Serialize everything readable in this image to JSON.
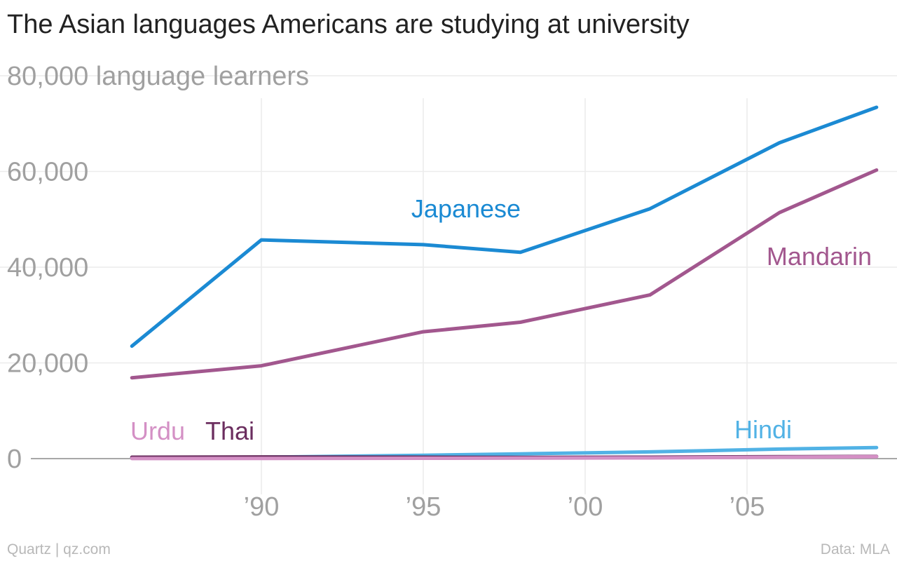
{
  "chart_data": {
    "type": "line",
    "title": "The Asian languages Americans are studying at university",
    "ylabel": "language learners",
    "ylim": [
      0,
      80000
    ],
    "xlim": [
      1983.3,
      2009.3
    ],
    "y_ticks": [
      0,
      20000,
      40000,
      60000,
      80000
    ],
    "y_tick_labels": [
      "0",
      "20,000",
      "40,000",
      "60,000",
      "80,000 language learners"
    ],
    "x_ticks": [
      1990,
      1995,
      2000,
      2005
    ],
    "x_tick_labels": [
      "’90",
      "’95",
      "’00",
      "’05"
    ],
    "grid": true,
    "legend": "inline labels",
    "series": [
      {
        "name": "Japanese",
        "color": "#1b8ad3",
        "x": [
          1986,
          1990,
          1995,
          1998,
          2002,
          2006,
          2009
        ],
        "values": [
          23500,
          45700,
          44700,
          43100,
          52200,
          66000,
          73400
        ]
      },
      {
        "name": "Mandarin",
        "color": "#a2578e",
        "x": [
          1986,
          1990,
          1995,
          1998,
          2002,
          2006,
          2009
        ],
        "values": [
          16900,
          19400,
          26500,
          28500,
          34200,
          51400,
          60300
        ]
      },
      {
        "name": "Hindi",
        "color": "#51b2e5",
        "x": [
          1986,
          1990,
          1995,
          1998,
          2002,
          2006,
          2009
        ],
        "values": [
          200,
          300,
          700,
          1000,
          1400,
          2000,
          2300
        ]
      },
      {
        "name": "Thai",
        "color": "#6b2e5f",
        "x": [
          1986,
          1990,
          1995,
          1998,
          2002,
          2006,
          2009
        ],
        "values": [
          300,
          350,
          300,
          250,
          300,
          400,
          450
        ]
      },
      {
        "name": "Urdu",
        "color": "#d490c5",
        "x": [
          1986,
          1990,
          1995,
          1998,
          2002,
          2006,
          2009
        ],
        "values": [
          20,
          30,
          80,
          100,
          150,
          300,
          400
        ]
      }
    ],
    "source": "Data: MLA",
    "credit": "Quartz | qz.com"
  }
}
